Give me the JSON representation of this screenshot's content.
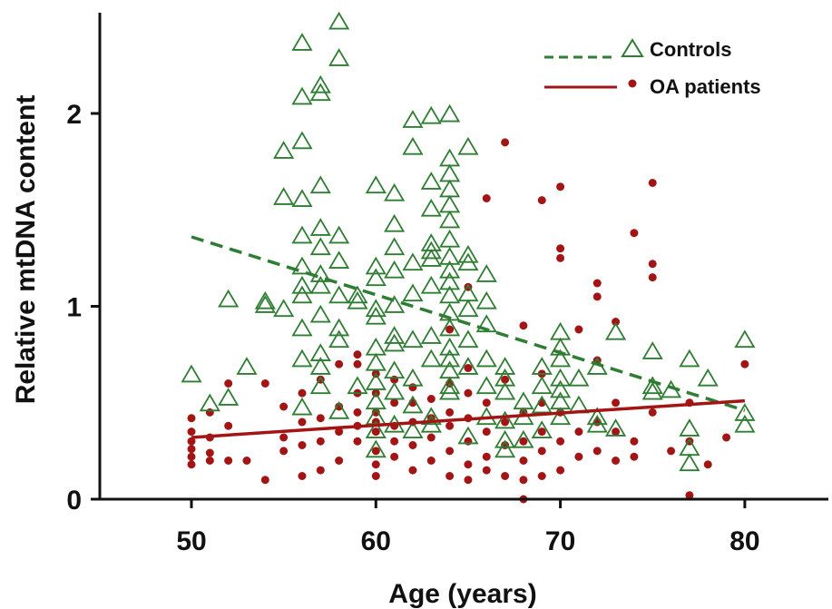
{
  "chart_data": {
    "type": "scatter",
    "xlabel": "Age (years)",
    "ylabel": "Relative mtDNA content",
    "xlim": [
      45,
      86
    ],
    "ylim": [
      0,
      2.5
    ],
    "x_ticks": [
      "50",
      "60",
      "70",
      "80"
    ],
    "y_ticks": [
      "0",
      "1",
      "2"
    ],
    "grid": false,
    "legend_position": "top-right",
    "series": [
      {
        "name": "Controls",
        "color": "#2e7d32",
        "marker": "open-triangle",
        "fit_style": "dashed",
        "fit_line": [
          [
            50,
            1.36
          ],
          [
            80,
            0.46
          ]
        ],
        "points": [
          [
            50,
            0.64
          ],
          [
            51,
            0.49
          ],
          [
            52,
            0.52
          ],
          [
            52,
            1.03
          ],
          [
            53,
            0.68
          ],
          [
            54,
            1.02
          ],
          [
            54,
            1.0
          ],
          [
            55,
            0.98
          ],
          [
            55,
            1.56
          ],
          [
            55,
            1.8
          ],
          [
            56,
            0.72
          ],
          [
            56,
            0.88
          ],
          [
            56,
            1.05
          ],
          [
            56,
            1.1
          ],
          [
            56,
            1.2
          ],
          [
            56,
            1.36
          ],
          [
            56,
            1.55
          ],
          [
            56,
            1.85
          ],
          [
            56,
            2.08
          ],
          [
            56,
            2.36
          ],
          [
            56,
            0.47
          ],
          [
            57,
            0.58
          ],
          [
            57,
            0.68
          ],
          [
            57,
            0.75
          ],
          [
            57,
            0.95
          ],
          [
            57,
            1.1
          ],
          [
            57,
            1.16
          ],
          [
            57,
            1.3
          ],
          [
            57,
            1.4
          ],
          [
            57,
            1.62
          ],
          [
            57,
            2.1
          ],
          [
            57,
            2.14
          ],
          [
            58,
            0.45
          ],
          [
            58,
            0.82
          ],
          [
            58,
            0.88
          ],
          [
            58,
            1.05
          ],
          [
            58,
            1.23
          ],
          [
            58,
            1.36
          ],
          [
            58,
            2.28
          ],
          [
            58,
            2.47
          ],
          [
            59,
            0.58
          ],
          [
            59,
            1.02
          ],
          [
            59,
            1.05
          ],
          [
            60,
            0.25
          ],
          [
            60,
            0.35
          ],
          [
            60,
            0.42
          ],
          [
            60,
            0.5
          ],
          [
            60,
            0.6
          ],
          [
            60,
            0.7
          ],
          [
            60,
            0.78
          ],
          [
            60,
            0.94
          ],
          [
            60,
            0.98
          ],
          [
            60,
            1.14
          ],
          [
            60,
            1.2
          ],
          [
            60,
            1.62
          ],
          [
            61,
            0.38
          ],
          [
            61,
            0.55
          ],
          [
            61,
            0.66
          ],
          [
            61,
            0.8
          ],
          [
            61,
            0.84
          ],
          [
            61,
            1.0
          ],
          [
            61,
            1.18
          ],
          [
            61,
            1.3
          ],
          [
            61,
            1.42
          ],
          [
            61,
            1.58
          ],
          [
            62,
            0.35
          ],
          [
            62,
            0.48
          ],
          [
            62,
            0.62
          ],
          [
            62,
            0.82
          ],
          [
            62,
            1.06
          ],
          [
            62,
            1.22
          ],
          [
            62,
            1.82
          ],
          [
            62,
            1.96
          ],
          [
            63,
            0.38
          ],
          [
            63,
            0.42
          ],
          [
            63,
            0.72
          ],
          [
            63,
            0.84
          ],
          [
            63,
            1.1
          ],
          [
            63,
            1.24
          ],
          [
            63,
            1.28
          ],
          [
            63,
            1.32
          ],
          [
            63,
            1.5
          ],
          [
            63,
            1.64
          ],
          [
            63,
            1.98
          ],
          [
            64,
            0.55
          ],
          [
            64,
            0.58
          ],
          [
            64,
            0.66
          ],
          [
            64,
            0.72
          ],
          [
            64,
            0.78
          ],
          [
            64,
            0.88
          ],
          [
            64,
            0.96
          ],
          [
            64,
            1.05
          ],
          [
            64,
            1.12
          ],
          [
            64,
            1.18
          ],
          [
            64,
            1.25
          ],
          [
            64,
            1.34
          ],
          [
            64,
            1.44
          ],
          [
            64,
            1.52
          ],
          [
            64,
            1.6
          ],
          [
            64,
            1.68
          ],
          [
            64,
            1.76
          ],
          [
            64,
            1.99
          ],
          [
            65,
            0.32
          ],
          [
            65,
            0.68
          ],
          [
            65,
            0.82
          ],
          [
            65,
            0.98
          ],
          [
            65,
            1.06
          ],
          [
            65,
            1.22
          ],
          [
            65,
            1.26
          ],
          [
            65,
            1.82
          ],
          [
            66,
            0.42
          ],
          [
            66,
            0.58
          ],
          [
            66,
            0.72
          ],
          [
            66,
            0.9
          ],
          [
            66,
            1.02
          ],
          [
            66,
            1.16
          ],
          [
            67,
            0.25
          ],
          [
            67,
            0.3
          ],
          [
            67,
            0.4
          ],
          [
            67,
            0.55
          ],
          [
            67,
            0.62
          ],
          [
            67,
            0.68
          ],
          [
            68,
            0.3
          ],
          [
            68,
            0.42
          ],
          [
            68,
            0.5
          ],
          [
            69,
            0.35
          ],
          [
            69,
            0.48
          ],
          [
            69,
            0.58
          ],
          [
            69,
            0.68
          ],
          [
            70,
            0.42
          ],
          [
            70,
            0.5
          ],
          [
            70,
            0.56
          ],
          [
            70,
            0.62
          ],
          [
            70,
            0.72
          ],
          [
            70,
            0.78
          ],
          [
            70,
            0.86
          ],
          [
            71,
            0.48
          ],
          [
            71,
            0.62
          ],
          [
            72,
            0.38
          ],
          [
            72,
            0.42
          ],
          [
            72,
            0.68
          ],
          [
            73,
            0.36
          ],
          [
            73,
            0.86
          ],
          [
            75,
            0.55
          ],
          [
            75,
            0.58
          ],
          [
            75,
            0.76
          ],
          [
            76,
            0.56
          ],
          [
            77,
            0.18
          ],
          [
            77,
            0.26
          ],
          [
            77,
            0.36
          ],
          [
            77,
            0.72
          ],
          [
            78,
            0.62
          ],
          [
            80,
            0.38
          ],
          [
            80,
            0.44
          ],
          [
            80,
            0.82
          ]
        ]
      },
      {
        "name": "OA patients",
        "color": "#a31515",
        "marker": "filled-circle",
        "fit_style": "solid",
        "fit_line": [
          [
            50,
            0.32
          ],
          [
            80,
            0.51
          ]
        ],
        "points": [
          [
            50,
            0.18
          ],
          [
            50,
            0.22
          ],
          [
            50,
            0.26
          ],
          [
            50,
            0.3
          ],
          [
            50,
            0.35
          ],
          [
            50,
            0.42
          ],
          [
            51,
            0.2
          ],
          [
            51,
            0.24
          ],
          [
            51,
            0.32
          ],
          [
            51,
            0.45
          ],
          [
            52,
            0.2
          ],
          [
            52,
            0.38
          ],
          [
            52,
            0.6
          ],
          [
            53,
            0.2
          ],
          [
            54,
            0.1
          ],
          [
            54,
            0.6
          ],
          [
            55,
            0.25
          ],
          [
            55,
            0.32
          ],
          [
            55,
            0.48
          ],
          [
            56,
            0.12
          ],
          [
            56,
            0.28
          ],
          [
            56,
            0.4
          ],
          [
            56,
            0.55
          ],
          [
            57,
            0.15
          ],
          [
            57,
            0.3
          ],
          [
            57,
            0.42
          ],
          [
            57,
            0.62
          ],
          [
            58,
            0.2
          ],
          [
            58,
            0.35
          ],
          [
            58,
            0.48
          ],
          [
            58,
            0.7
          ],
          [
            59,
            0.3
          ],
          [
            59,
            0.38
          ],
          [
            59,
            0.45
          ],
          [
            59,
            0.55
          ],
          [
            59,
            0.7
          ],
          [
            59,
            0.75
          ],
          [
            60,
            0.12
          ],
          [
            60,
            0.18
          ],
          [
            60,
            0.25
          ],
          [
            60,
            0.35
          ],
          [
            60,
            0.4
          ],
          [
            60,
            0.45
          ],
          [
            60,
            0.55
          ],
          [
            60,
            0.65
          ],
          [
            61,
            0.22
          ],
          [
            61,
            0.3
          ],
          [
            61,
            0.38
          ],
          [
            61,
            0.5
          ],
          [
            61,
            0.62
          ],
          [
            62,
            0.15
          ],
          [
            62,
            0.28
          ],
          [
            62,
            0.4
          ],
          [
            62,
            0.5
          ],
          [
            62,
            0.58
          ],
          [
            63,
            0.2
          ],
          [
            63,
            0.32
          ],
          [
            63,
            0.42
          ],
          [
            63,
            0.52
          ],
          [
            64,
            0.12
          ],
          [
            64,
            0.25
          ],
          [
            64,
            0.38
          ],
          [
            64,
            0.45
          ],
          [
            64,
            0.6
          ],
          [
            64,
            0.88
          ],
          [
            65,
            0.1
          ],
          [
            65,
            0.18
          ],
          [
            65,
            0.3
          ],
          [
            65,
            0.42
          ],
          [
            65,
            0.55
          ],
          [
            65,
            0.68
          ],
          [
            65,
            1.1
          ],
          [
            66,
            0.15
          ],
          [
            66,
            0.22
          ],
          [
            66,
            0.35
          ],
          [
            66,
            0.5
          ],
          [
            66,
            1.56
          ],
          [
            67,
            0.12
          ],
          [
            67,
            0.28
          ],
          [
            67,
            0.4
          ],
          [
            67,
            0.62
          ],
          [
            67,
            1.85
          ],
          [
            68,
            0.0
          ],
          [
            68,
            0.1
          ],
          [
            68,
            0.2
          ],
          [
            68,
            0.3
          ],
          [
            68,
            0.45
          ],
          [
            68,
            0.9
          ],
          [
            69,
            0.12
          ],
          [
            69,
            0.25
          ],
          [
            69,
            0.35
          ],
          [
            69,
            0.5
          ],
          [
            69,
            0.65
          ],
          [
            69,
            1.55
          ],
          [
            70,
            0.15
          ],
          [
            70,
            0.3
          ],
          [
            70,
            0.45
          ],
          [
            70,
            1.25
          ],
          [
            70,
            1.3
          ],
          [
            70,
            1.62
          ],
          [
            71,
            0.22
          ],
          [
            71,
            0.35
          ],
          [
            71,
            0.88
          ],
          [
            72,
            0.25
          ],
          [
            72,
            0.4
          ],
          [
            72,
            0.72
          ],
          [
            72,
            1.05
          ],
          [
            72,
            1.12
          ],
          [
            73,
            0.2
          ],
          [
            73,
            0.35
          ],
          [
            73,
            0.5
          ],
          [
            73,
            0.92
          ],
          [
            74,
            0.22
          ],
          [
            74,
            0.3
          ],
          [
            74,
            1.38
          ],
          [
            75,
            0.45
          ],
          [
            75,
            1.15
          ],
          [
            75,
            1.22
          ],
          [
            75,
            1.64
          ],
          [
            76,
            0.25
          ],
          [
            77,
            0.02
          ],
          [
            77,
            0.3
          ],
          [
            77,
            0.5
          ],
          [
            78,
            0.18
          ],
          [
            79,
            0.32
          ],
          [
            80,
            0.7
          ]
        ]
      }
    ]
  }
}
